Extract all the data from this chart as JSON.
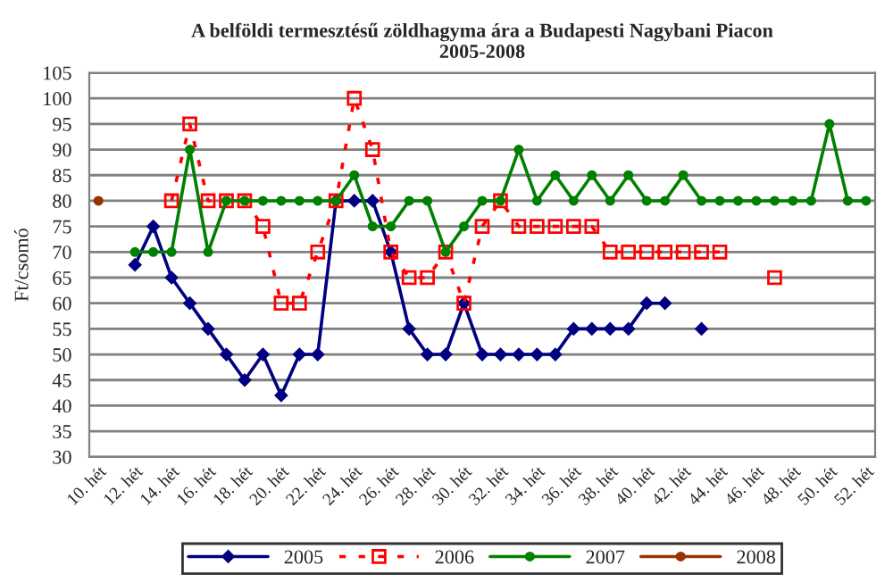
{
  "chart_data": {
    "type": "line",
    "title": "A belföldi termesztésű zöldhagyma ára a Budapesti Nagybani Piacon\n2005-2008",
    "ylabel": "Ft/csomó",
    "categories": [
      "10. hét",
      null,
      "12. hét",
      null,
      "14. hét",
      null,
      "16. hét",
      null,
      "18. hét",
      null,
      "20. hét",
      null,
      "22. hét",
      null,
      "24. hét",
      null,
      "26. hét",
      null,
      "28. hét",
      null,
      "30. hét",
      null,
      "32. hét",
      null,
      "34. hét",
      null,
      "36. hét",
      null,
      "38. hét",
      null,
      "40. hét",
      null,
      "42. hét",
      null,
      "44. hét",
      null,
      "46. hét",
      null,
      "48. hét",
      null,
      "50. hét",
      null,
      "52. hét"
    ],
    "series": [
      {
        "name": "2005",
        "color": "#000080",
        "marker": "diamond",
        "line_style": "solid",
        "values": [
          null,
          null,
          67.5,
          75,
          65,
          60,
          55,
          50,
          45,
          50,
          42,
          50,
          50,
          80,
          80,
          80,
          70,
          55,
          50,
          50,
          60,
          50,
          50,
          50,
          50,
          50,
          55,
          55,
          55,
          55,
          60,
          60,
          null,
          55,
          null,
          null,
          null,
          null,
          null,
          null,
          null,
          null,
          null
        ]
      },
      {
        "name": "2006",
        "color": "#ff0000",
        "marker": "square",
        "line_style": "dashed",
        "values": [
          null,
          null,
          null,
          null,
          80,
          95,
          80,
          80,
          80,
          75,
          60,
          60,
          70,
          80,
          100,
          90,
          70,
          65,
          65,
          70,
          60,
          75,
          80,
          75,
          75,
          75,
          75,
          75,
          70,
          70,
          70,
          70,
          70,
          70,
          70,
          null,
          null,
          65,
          null,
          null,
          null,
          null,
          null
        ]
      },
      {
        "name": "2007",
        "color": "#008000",
        "marker": "circle",
        "line_style": "solid",
        "values": [
          null,
          null,
          70,
          70,
          70,
          90,
          70,
          80,
          80,
          80,
          80,
          80,
          80,
          80,
          85,
          75,
          75,
          80,
          80,
          70,
          75,
          80,
          80,
          90,
          80,
          85,
          80,
          85,
          80,
          85,
          80,
          80,
          85,
          80,
          80,
          80,
          80,
          80,
          80,
          80,
          95,
          80,
          80
        ]
      },
      {
        "name": "2008",
        "color": "#993300",
        "marker": "circle",
        "line_style": "solid",
        "values": [
          80,
          null,
          null,
          null,
          null,
          null,
          null,
          null,
          null,
          null,
          null,
          null,
          null,
          null,
          null,
          null,
          null,
          null,
          null,
          null,
          null,
          null,
          null,
          null,
          null,
          null,
          null,
          null,
          null,
          null,
          null,
          null,
          null,
          null,
          null,
          null,
          null,
          null,
          null,
          null,
          null,
          null,
          null
        ]
      }
    ],
    "ylim": [
      30,
      105
    ],
    "yticks": [
      30,
      35,
      40,
      45,
      50,
      55,
      60,
      65,
      70,
      75,
      80,
      85,
      90,
      95,
      100,
      105
    ],
    "grid": "y",
    "legend": "bottom"
  }
}
